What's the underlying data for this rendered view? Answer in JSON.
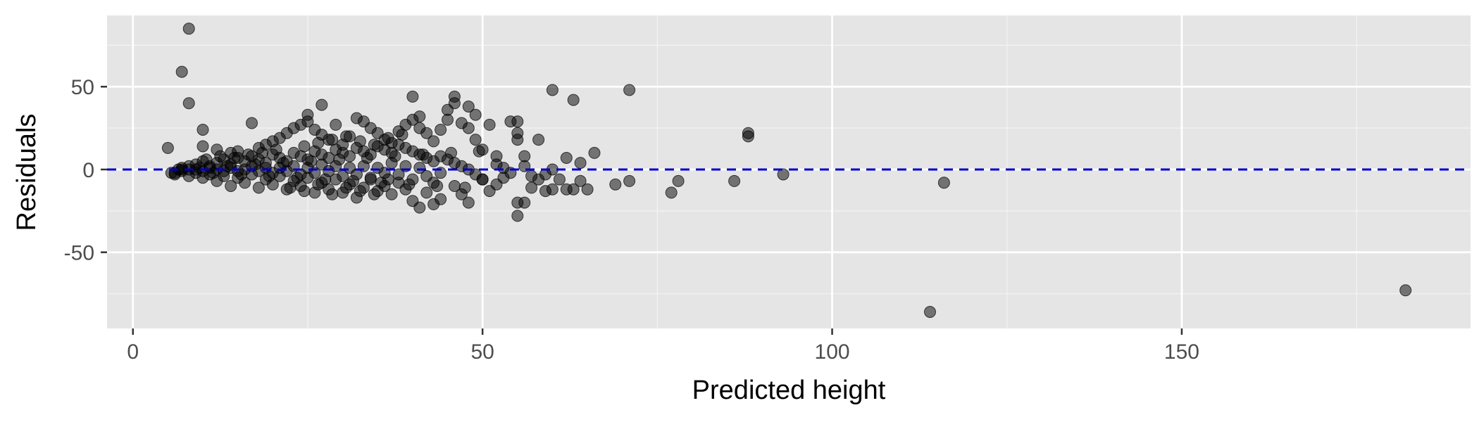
{
  "chart_data": {
    "type": "scatter",
    "title": "",
    "xlabel": "Predicted height",
    "ylabel": "Residuals",
    "xlim": [
      -3.7,
      191.3
    ],
    "ylim": [
      -96,
      93
    ],
    "xticks": [
      0,
      50,
      100,
      150
    ],
    "xtick_labels": [
      "0",
      "50",
      "100",
      "150"
    ],
    "yticks": [
      -50,
      0,
      50
    ],
    "ytick_labels": [
      "-50",
      "0",
      "50"
    ],
    "grid": true,
    "reference_line": {
      "y": 0,
      "style": "dashed",
      "color": "#0000cc"
    },
    "point_color": "#000000",
    "point_opacity": 0.5,
    "panel_background": "#e5e5e5",
    "points": [
      [
        8,
        85
      ],
      [
        7,
        59
      ],
      [
        8,
        40
      ],
      [
        17,
        28
      ],
      [
        10,
        24
      ],
      [
        5,
        13
      ],
      [
        10,
        14
      ],
      [
        12,
        12
      ],
      [
        14,
        10
      ],
      [
        15,
        11
      ],
      [
        18,
        13
      ],
      [
        19,
        15
      ],
      [
        20,
        17
      ],
      [
        21,
        19
      ],
      [
        22,
        22
      ],
      [
        23,
        25
      ],
      [
        24,
        27
      ],
      [
        25,
        33
      ],
      [
        25,
        29
      ],
      [
        26,
        24
      ],
      [
        27,
        21
      ],
      [
        27,
        39
      ],
      [
        28,
        18
      ],
      [
        29,
        27
      ],
      [
        30,
        15
      ],
      [
        31,
        20
      ],
      [
        32,
        31
      ],
      [
        33,
        29
      ],
      [
        34,
        25
      ],
      [
        35,
        22
      ],
      [
        36,
        18
      ],
      [
        37,
        16
      ],
      [
        38,
        23
      ],
      [
        39,
        27
      ],
      [
        40,
        44
      ],
      [
        40,
        30
      ],
      [
        41,
        32
      ],
      [
        41,
        25
      ],
      [
        42,
        22
      ],
      [
        43,
        17
      ],
      [
        44,
        24
      ],
      [
        45,
        30
      ],
      [
        45,
        36
      ],
      [
        46,
        44
      ],
      [
        46,
        40
      ],
      [
        47,
        28
      ],
      [
        48,
        38
      ],
      [
        48,
        25
      ],
      [
        49,
        33
      ],
      [
        49,
        18
      ],
      [
        50,
        12
      ],
      [
        51,
        27
      ],
      [
        52,
        8
      ],
      [
        54,
        29
      ],
      [
        55,
        29
      ],
      [
        55,
        22
      ],
      [
        55,
        18
      ],
      [
        56,
        8
      ],
      [
        58,
        18
      ],
      [
        60,
        48
      ],
      [
        62,
        7
      ],
      [
        63,
        42
      ],
      [
        64,
        4
      ],
      [
        66,
        10
      ],
      [
        71,
        48
      ],
      [
        69,
        -9
      ],
      [
        71,
        -7
      ],
      [
        77,
        -14
      ],
      [
        78,
        -7
      ],
      [
        86,
        -7
      ],
      [
        88,
        22
      ],
      [
        88,
        20
      ],
      [
        93,
        -3
      ],
      [
        116,
        -8
      ],
      [
        114,
        -86
      ],
      [
        182,
        -73
      ],
      [
        55,
        -28
      ],
      [
        55,
        -20
      ],
      [
        56,
        -20
      ],
      [
        57,
        -11
      ],
      [
        58,
        -6
      ],
      [
        59,
        -13
      ],
      [
        60,
        -12
      ],
      [
        61,
        -6
      ],
      [
        62,
        -12
      ],
      [
        63,
        -12
      ],
      [
        64,
        -7
      ],
      [
        65,
        -12
      ],
      [
        60,
        0
      ],
      [
        59,
        -3
      ],
      [
        53,
        -5
      ],
      [
        52,
        -9
      ],
      [
        51,
        -13
      ],
      [
        50,
        -6
      ],
      [
        48,
        -20
      ],
      [
        47,
        -15
      ],
      [
        46,
        -10
      ],
      [
        44,
        -18
      ],
      [
        43,
        -21
      ],
      [
        42,
        -14
      ],
      [
        41,
        -23
      ],
      [
        40,
        -19
      ],
      [
        39,
        -12
      ],
      [
        38,
        -8
      ],
      [
        37,
        -15
      ],
      [
        36,
        -10
      ],
      [
        35,
        -13
      ],
      [
        34,
        -6
      ],
      [
        33,
        -11
      ],
      [
        32,
        -17
      ],
      [
        31,
        -9
      ],
      [
        30,
        -14
      ],
      [
        29,
        -6
      ],
      [
        28,
        -12
      ],
      [
        27,
        -8
      ],
      [
        26,
        -14
      ],
      [
        25,
        -5
      ],
      [
        24,
        -10
      ],
      [
        23,
        -7
      ],
      [
        22,
        -12
      ],
      [
        21,
        -4
      ],
      [
        20,
        -9
      ],
      [
        19,
        -6
      ],
      [
        18,
        -11
      ],
      [
        17,
        -3
      ],
      [
        16,
        -8
      ],
      [
        15,
        -5
      ],
      [
        14,
        -10
      ],
      [
        13,
        -4
      ],
      [
        12,
        -7
      ],
      [
        11,
        -3
      ],
      [
        10,
        -5
      ],
      [
        9,
        -2
      ],
      [
        8,
        -4
      ],
      [
        7,
        -1
      ],
      [
        6,
        -3
      ],
      [
        6,
        -2
      ],
      [
        7,
        1
      ],
      [
        8,
        2
      ],
      [
        9,
        3
      ],
      [
        10,
        5
      ],
      [
        11,
        2
      ],
      [
        12,
        4
      ],
      [
        13,
        6
      ],
      [
        14,
        3
      ],
      [
        15,
        7
      ],
      [
        16,
        5
      ],
      [
        17,
        8
      ],
      [
        18,
        6
      ],
      [
        19,
        4
      ],
      [
        20,
        9
      ],
      [
        21,
        7
      ],
      [
        22,
        5
      ],
      [
        23,
        10
      ],
      [
        24,
        8
      ],
      [
        25,
        6
      ],
      [
        26,
        11
      ],
      [
        27,
        9
      ],
      [
        28,
        7
      ],
      [
        29,
        12
      ],
      [
        30,
        10
      ],
      [
        31,
        8
      ],
      [
        32,
        13
      ],
      [
        33,
        11
      ],
      [
        34,
        9
      ],
      [
        35,
        14
      ],
      [
        36,
        12
      ],
      [
        37,
        10
      ],
      [
        38,
        15
      ],
      [
        39,
        13
      ],
      [
        40,
        11
      ],
      [
        41,
        9
      ],
      [
        42,
        7
      ],
      [
        43,
        5
      ],
      [
        44,
        8
      ],
      [
        45,
        6
      ],
      [
        46,
        4
      ],
      [
        47,
        2
      ],
      [
        48,
        0
      ],
      [
        49,
        -3
      ],
      [
        50,
        -6
      ],
      [
        52,
        3
      ],
      [
        53,
        1
      ],
      [
        54,
        -2
      ],
      [
        56,
        2
      ],
      [
        57,
        -4
      ],
      [
        44,
        -2
      ],
      [
        43,
        -8
      ],
      [
        42,
        -4
      ],
      [
        41,
        1
      ],
      [
        40,
        -6
      ],
      [
        39,
        2
      ],
      [
        38,
        -3
      ],
      [
        37,
        4
      ],
      [
        36,
        -2
      ],
      [
        35,
        1
      ],
      [
        34,
        -5
      ],
      [
        33,
        2
      ],
      [
        32,
        -3
      ],
      [
        31,
        1
      ],
      [
        30,
        -4
      ],
      [
        29,
        2
      ],
      [
        28,
        -1
      ],
      [
        27,
        3
      ],
      [
        26,
        -2
      ],
      [
        25,
        1
      ],
      [
        24,
        -3
      ],
      [
        23,
        2
      ],
      [
        22,
        -1
      ],
      [
        21,
        1
      ],
      [
        20,
        -2
      ],
      [
        19,
        1
      ],
      [
        18,
        -1
      ],
      [
        17,
        2
      ],
      [
        16,
        0
      ],
      [
        15,
        -1
      ],
      [
        14,
        1
      ],
      [
        13,
        -1
      ],
      [
        12,
        0
      ],
      [
        11,
        1
      ],
      [
        10,
        -1
      ],
      [
        9,
        0
      ],
      [
        8,
        0
      ],
      [
        7,
        0
      ],
      [
        5.5,
        -2
      ],
      [
        6.5,
        0
      ],
      [
        9.5,
        1
      ],
      [
        11.5,
        -2
      ],
      [
        13.5,
        2
      ],
      [
        15.5,
        -3
      ],
      [
        17.5,
        3
      ],
      [
        19.5,
        -4
      ],
      [
        21.5,
        4
      ],
      [
        23.5,
        -5
      ],
      [
        25.5,
        5
      ],
      [
        27.5,
        -6
      ],
      [
        29.5,
        6
      ],
      [
        31.5,
        -7
      ],
      [
        33.5,
        7
      ],
      [
        35.5,
        -8
      ],
      [
        37.5,
        8
      ],
      [
        39.5,
        -9
      ],
      [
        41.5,
        9
      ],
      [
        43.5,
        -10
      ],
      [
        45.5,
        10
      ],
      [
        47.5,
        -11
      ],
      [
        49.5,
        11
      ],
      [
        24.5,
        14
      ],
      [
        26.5,
        16
      ],
      [
        28.5,
        18
      ],
      [
        30.5,
        20
      ],
      [
        32.5,
        17
      ],
      [
        34.5,
        15
      ],
      [
        36.5,
        19
      ],
      [
        38.5,
        21
      ],
      [
        22.5,
        -11
      ],
      [
        24.5,
        -13
      ],
      [
        26.5,
        -9
      ],
      [
        28.5,
        -15
      ],
      [
        30.5,
        -11
      ],
      [
        32.5,
        -13
      ],
      [
        34.5,
        -15
      ],
      [
        36.5,
        -6
      ],
      [
        18.5,
        10
      ],
      [
        20.5,
        12
      ],
      [
        16.5,
        9
      ],
      [
        14.5,
        7
      ],
      [
        12.5,
        8
      ],
      [
        10.5,
        6
      ]
    ]
  }
}
